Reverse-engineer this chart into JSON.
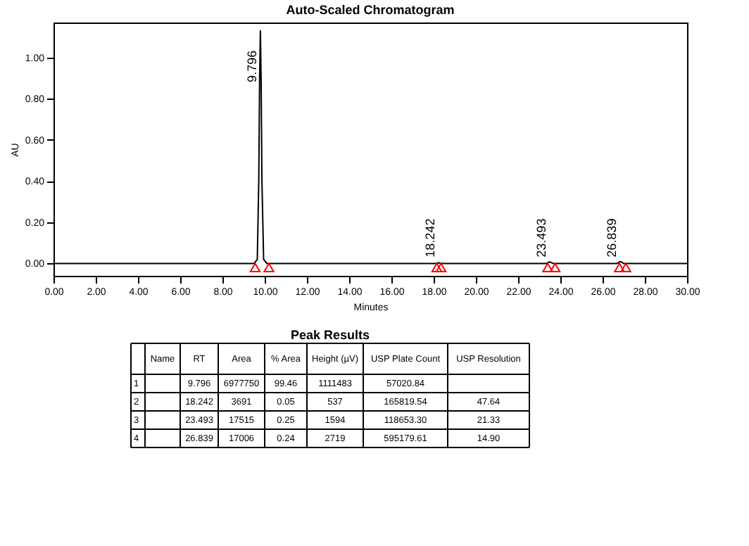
{
  "chart_data": {
    "type": "line",
    "title": "Auto-Scaled Chromatogram",
    "xlabel": "Minutes",
    "ylabel": "AU",
    "series": [
      {
        "color": "#000000",
        "x": [
          0,
          9.5,
          9.65,
          9.72,
          9.76,
          9.796,
          9.83,
          9.87,
          9.95,
          10.1,
          18.1,
          18.242,
          18.4,
          23.35,
          23.493,
          23.65,
          26.7,
          26.839,
          27.0,
          30
        ],
        "values": [
          0,
          0,
          0.02,
          0.4,
          0.9,
          1.13,
          0.9,
          0.4,
          0.02,
          0,
          0,
          0.003,
          0,
          0,
          0.008,
          0,
          0,
          0.01,
          0,
          0
        ]
      },
      {
        "type": "scatter",
        "marker": "triangle",
        "color": "#ff0000",
        "x": [
          9.55,
          10.2,
          18.15,
          18.35,
          23.4,
          23.75,
          26.8,
          27.1
        ],
        "values": [
          -0.02,
          -0.02,
          -0.02,
          -0.02,
          -0.02,
          -0.02,
          -0.02,
          -0.02
        ]
      }
    ],
    "xlim": [
      0,
      30
    ],
    "ylim": [
      -0.06,
      1.17
    ],
    "xticks": [
      {
        "value": 0,
        "label": "0.00"
      },
      {
        "value": 2,
        "label": "2.00"
      },
      {
        "value": 4,
        "label": "4.00"
      },
      {
        "value": 6,
        "label": "6.00"
      },
      {
        "value": 8,
        "label": "8.00"
      },
      {
        "value": 10,
        "label": "10.00"
      },
      {
        "value": 12,
        "label": "12.00"
      },
      {
        "value": 14,
        "label": "14.00"
      },
      {
        "value": 16,
        "label": "16.00"
      },
      {
        "value": 18,
        "label": "18.00"
      },
      {
        "value": 20,
        "label": "20.00"
      },
      {
        "value": 22,
        "label": "22.00"
      },
      {
        "value": 24,
        "label": "24.00"
      },
      {
        "value": 26,
        "label": "26.00"
      },
      {
        "value": 28,
        "label": "28.00"
      },
      {
        "value": 30,
        "label": "30.00"
      }
    ],
    "yticks": [
      {
        "value": 0,
        "label": "0.00"
      },
      {
        "value": 0.2,
        "label": "0.20"
      },
      {
        "value": 0.4,
        "label": "0.40"
      },
      {
        "value": 0.6,
        "label": "0.60"
      },
      {
        "value": 0.8,
        "label": "0.80"
      },
      {
        "value": 1.0,
        "label": "1.00"
      }
    ],
    "grid": false,
    "annotations": [
      {
        "text": "9.796",
        "x": 9.796,
        "y": 0.88
      },
      {
        "text": "18.242",
        "x": 18.242,
        "y": 0.03
      },
      {
        "text": "23.493",
        "x": 23.493,
        "y": 0.03
      },
      {
        "text": "26.839",
        "x": 26.839,
        "y": 0.03
      },
      "Peak Results",
      null,
      "Name",
      "RT",
      "Area",
      "% Area",
      "Height (µV)",
      "USP Plate Count",
      "USP Resolution",
      "1",
      null,
      "9.796",
      "6977750",
      "99.46",
      "1111483",
      "57020.84",
      null,
      "2",
      null,
      "18.242",
      "3691",
      "0.05",
      "537",
      "165819.54",
      "47.64",
      "3",
      null,
      "23.493",
      "17515",
      "0.25",
      "1594",
      "118653.30",
      "21.33",
      "4",
      null,
      "26.839",
      "17006",
      "0.24",
      "2719",
      "595179.61",
      "14.90"
    ]
  }
}
